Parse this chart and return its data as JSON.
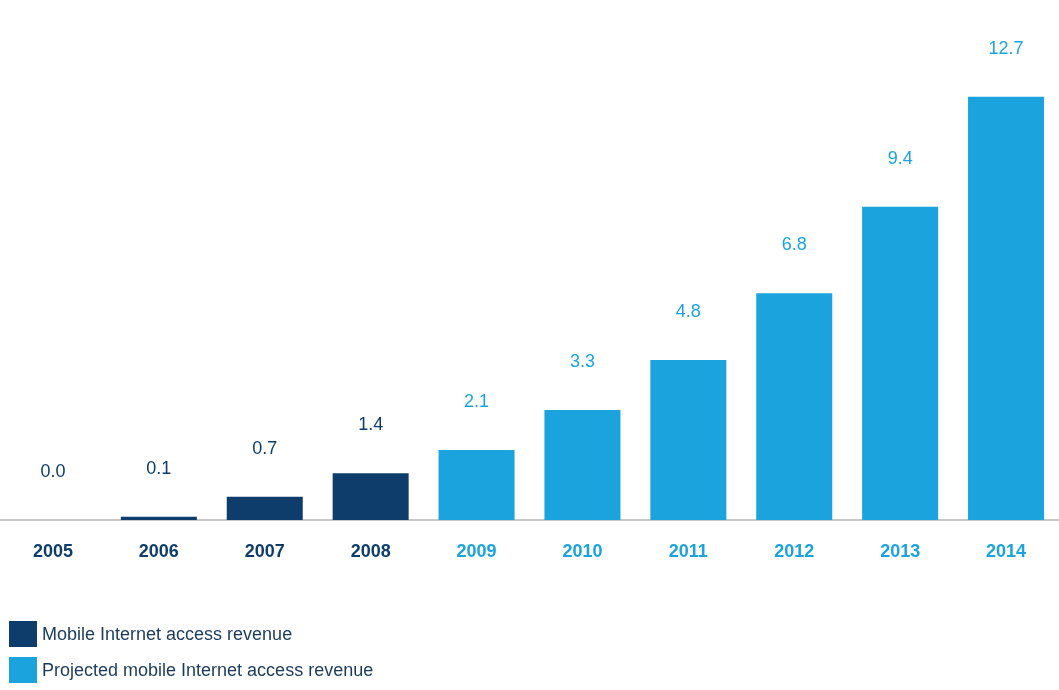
{
  "chart_data": {
    "type": "bar",
    "categories": [
      "2005",
      "2006",
      "2007",
      "2008",
      "2009",
      "2010",
      "2011",
      "2012",
      "2013",
      "2014"
    ],
    "stacked": true,
    "legend": "bottom left",
    "grid": false,
    "series": [
      {
        "name": "Mobile Internet access revenue",
        "color": "#0e3d6b",
        "values": [
          0,
          0.1,
          0.7,
          1.4,
          null,
          null,
          null,
          null,
          null,
          null
        ],
        "value_labels": [
          "0.0",
          "0.1",
          "0.7",
          "1.4",
          null,
          null,
          null,
          null,
          null,
          null
        ]
      },
      {
        "name": "Projected mobile Internet access revenue",
        "color": "#1ba3dd",
        "values": [
          null,
          null,
          null,
          null,
          2.1,
          3.3,
          4.8,
          6.8,
          9.4,
          12.7
        ],
        "value_labels": [
          null,
          null,
          null,
          null,
          "2.1",
          "3.3",
          "4.8",
          "6.8",
          "9.4",
          "12.7"
        ]
      }
    ]
  }
}
